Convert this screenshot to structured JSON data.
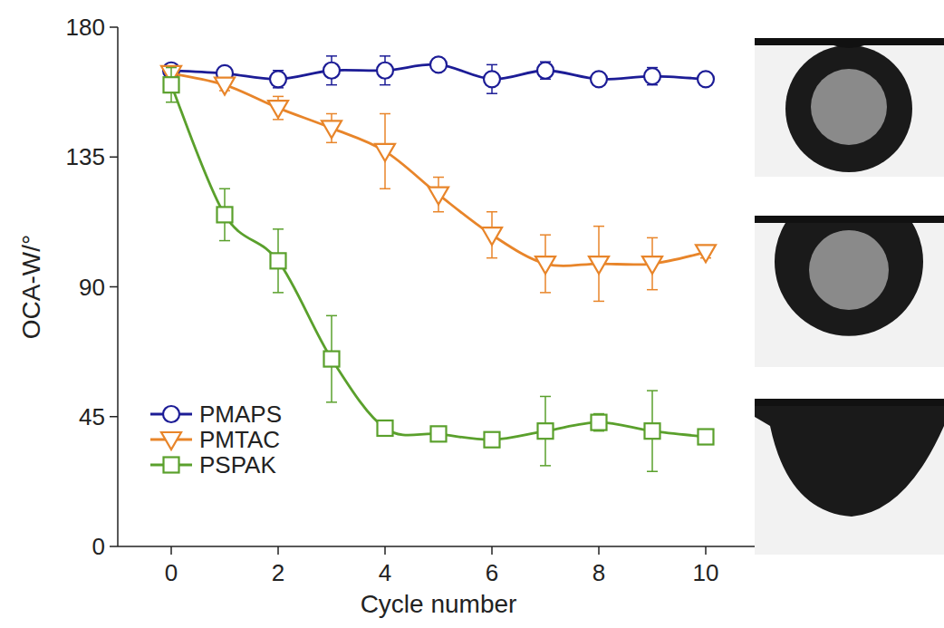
{
  "chart_data": {
    "type": "line",
    "x_label": "Cycle number",
    "y_label": "OCA-W/°",
    "x": [
      0,
      1,
      2,
      3,
      4,
      5,
      6,
      7,
      8,
      9,
      10
    ],
    "xlim": [
      -1,
      11
    ],
    "xticks": [
      0,
      2,
      4,
      6,
      8,
      10
    ],
    "ylim": [
      0,
      180
    ],
    "yticks": [
      0,
      45,
      90,
      135,
      180
    ],
    "grid": false,
    "legend": "lower left",
    "series": [
      {
        "name": "PMAPS",
        "color": "#1c1c96",
        "marker": "circle",
        "line_style": "solid",
        "values": [
          165,
          164,
          162,
          165,
          165,
          167,
          162,
          165,
          162,
          163,
          162
        ],
        "errors": [
          2,
          2,
          3,
          5,
          5,
          2,
          5,
          3,
          2,
          3,
          2
        ]
      },
      {
        "name": "PMTAC",
        "color": "#e8852a",
        "marker": "triangle-down",
        "line_style": "solid",
        "values": [
          164,
          160,
          152,
          145,
          137,
          122,
          108,
          98,
          98,
          98,
          102
        ],
        "errors": [
          2,
          2,
          4,
          5,
          13,
          6,
          8,
          10,
          13,
          9,
          2
        ]
      },
      {
        "name": "PSPAK",
        "color": "#5aa02c",
        "marker": "square",
        "line_style": "solid",
        "values": [
          160,
          115,
          99,
          65,
          41,
          39,
          37,
          40,
          43,
          40,
          38
        ],
        "errors": [
          6,
          9,
          11,
          15,
          2,
          2,
          2,
          12,
          3,
          14,
          2
        ]
      }
    ]
  }
}
